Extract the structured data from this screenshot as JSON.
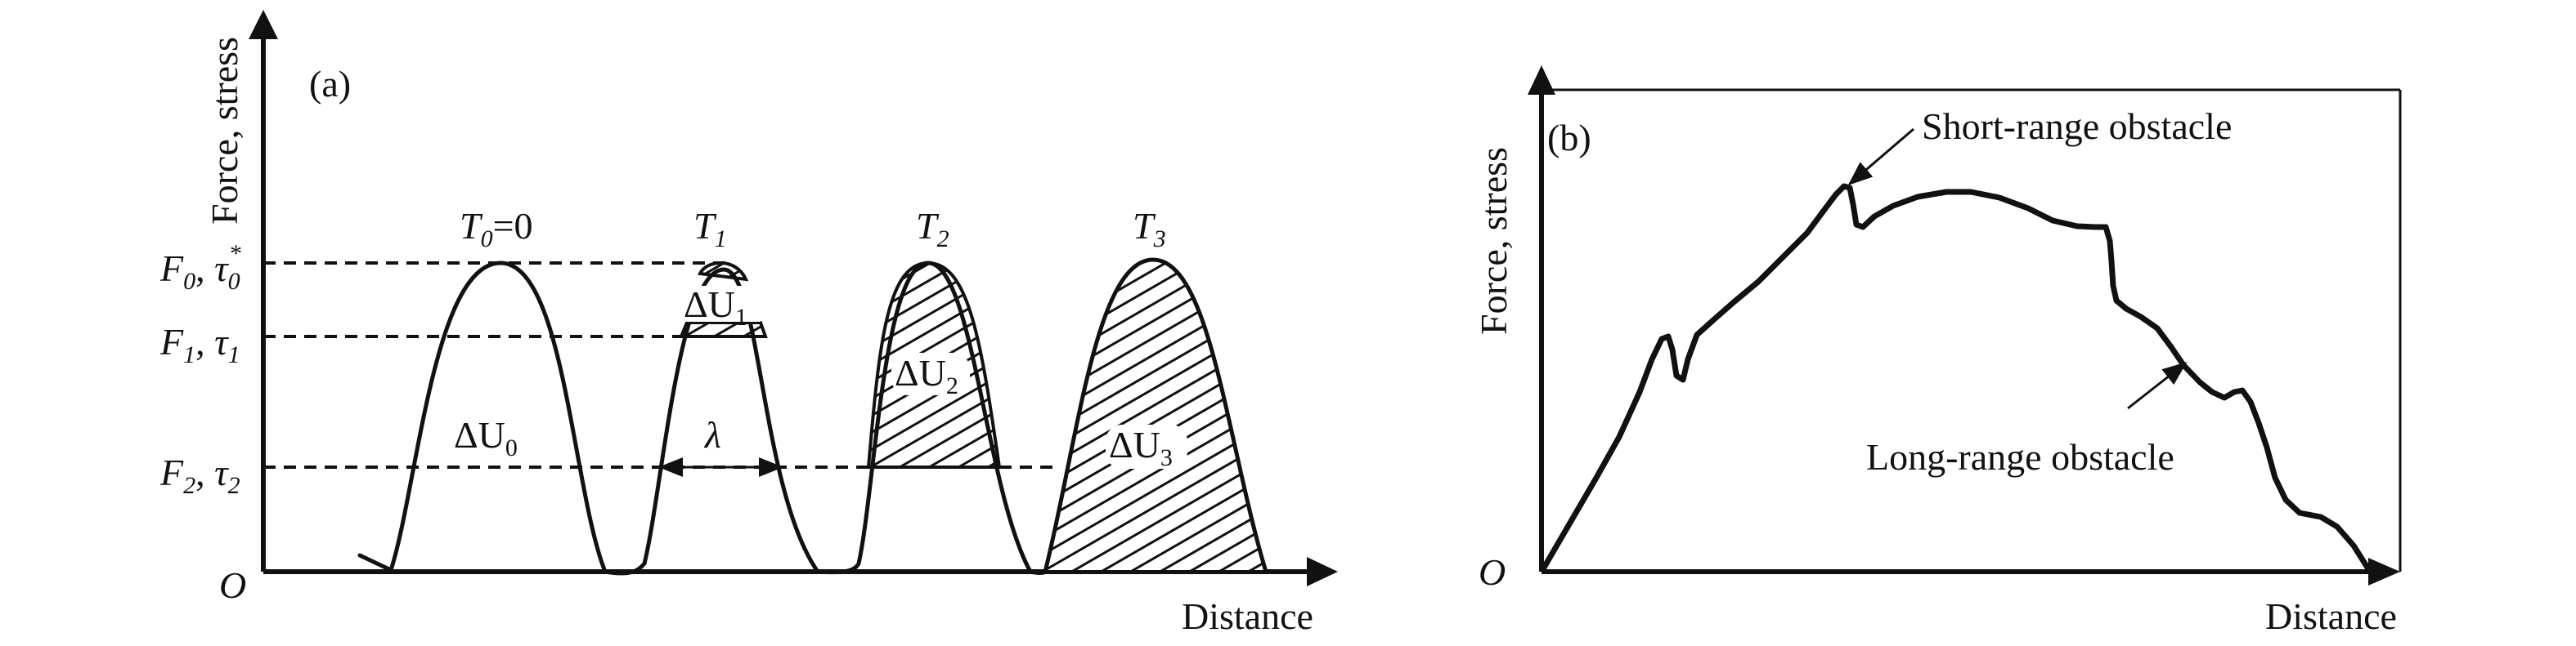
{
  "panel_a": {
    "panel_label": "(a)",
    "y_axis_label": "Force, stress",
    "x_axis_label": "Distance",
    "origin_label": "O",
    "levels": [
      {
        "sym": "F",
        "sub": "0",
        "stress": "τ",
        "stress_sub": "0",
        "stress_sup": "*"
      },
      {
        "sym": "F",
        "sub": "1",
        "stress": "τ",
        "stress_sub": "1"
      },
      {
        "sym": "F",
        "sub": "2",
        "stress": "τ",
        "stress_sub": "2"
      }
    ],
    "peaks": [
      {
        "T": "T",
        "sub": "0",
        "suffix": "=0"
      },
      {
        "T": "T",
        "sub": "1",
        "suffix": ""
      },
      {
        "T": "T",
        "sub": "2",
        "suffix": ""
      },
      {
        "T": "T",
        "sub": "3",
        "suffix": ""
      }
    ],
    "energy_labels": [
      {
        "sym": "ΔU",
        "sub": "0"
      },
      {
        "sym": "ΔU",
        "sub": "1"
      },
      {
        "sym": "ΔU",
        "sub": "2"
      },
      {
        "sym": "ΔU",
        "sub": "3"
      }
    ],
    "width_label": "λ"
  },
  "panel_b": {
    "panel_label": "(b)",
    "y_axis_label": "Force, stress",
    "x_axis_label": "Distance",
    "origin_label": "O",
    "short_range_label": "Short-range obstacle",
    "long_range_label": "Long-range obstacle"
  }
}
